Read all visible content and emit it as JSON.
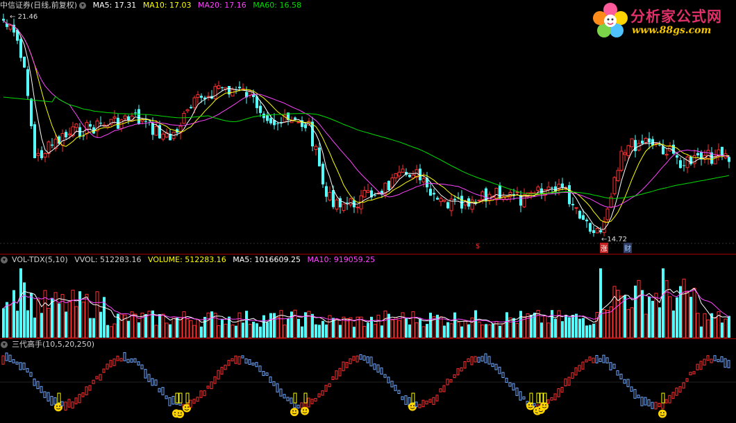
{
  "price_panel": {
    "stock_name": "中信证券(日线,前复权)",
    "ma5": "MA5: 17.31",
    "ma10": "MA10: 17.03",
    "ma20": "MA20: 17.16",
    "ma60": "MA60: 16.58",
    "high_label": "21.46",
    "low_label": "14.72",
    "marker_dollar": "$",
    "marker_zhang": "涨",
    "marker_cai": "财",
    "colors": {
      "ma5": "#ffffff",
      "ma10": "#ffff00",
      "ma20": "#ff44ff",
      "ma60": "#00dd00",
      "up": "#ff3030",
      "down": "#54ffff"
    }
  },
  "volume_panel": {
    "title": "VOL-TDX(5,10)",
    "vvol": "VVOL: 512283.16",
    "volume": "VOLUME: 512283.16",
    "ma5": "MA5: 1016609.25",
    "ma10": "MA10: 919059.25",
    "colors": {
      "volume": "#ffff00",
      "ma5": "#ffffff",
      "ma10": "#ff44ff"
    }
  },
  "indicator_panel": {
    "title": "三代高手(10,5,20,250)"
  },
  "logo": {
    "title": "分析家公式网",
    "url": "www.88gs.com"
  }
}
